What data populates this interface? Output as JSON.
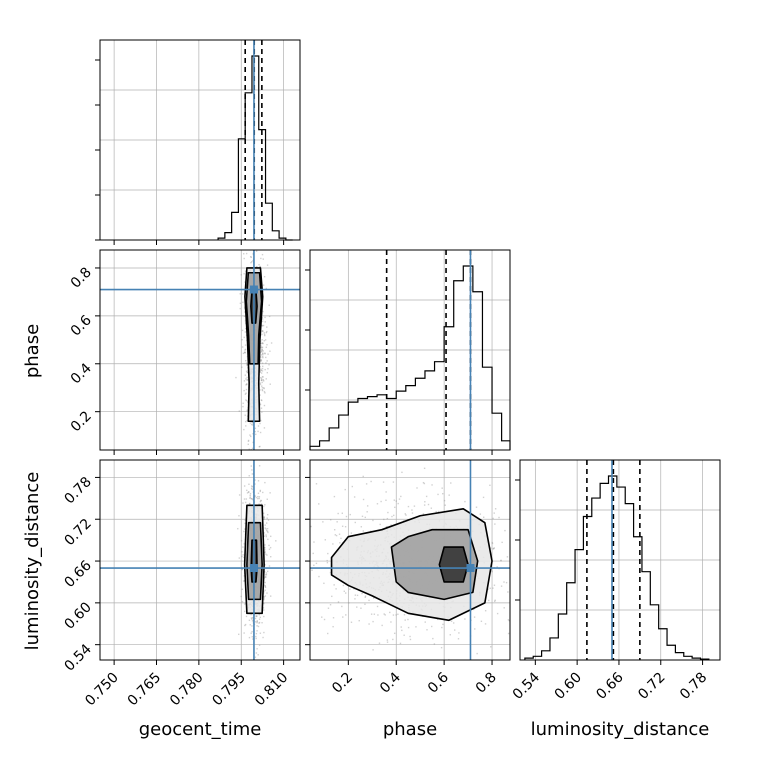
{
  "chart_data": {
    "type": "corner",
    "parameters": [
      "geocent_time",
      "phase",
      "luminosity_distance"
    ],
    "axis_labels": {
      "geocent_time": "geocent_time",
      "phase": "phase",
      "luminosity_distance": "luminosity_distance"
    },
    "ranges": {
      "geocent_time": [
        0.745,
        0.8158
      ],
      "phase": [
        0.04,
        0.875
      ],
      "luminosity_distance": [
        0.518,
        0.805
      ]
    },
    "ticks": {
      "geocent_time": [
        "0.750",
        "0.765",
        "0.780",
        "0.795",
        "0.810"
      ],
      "phase": [
        "0.2",
        "0.4",
        "0.6",
        "0.8"
      ],
      "luminosity_distance": [
        "0.54",
        "0.60",
        "0.66",
        "0.72",
        "0.78"
      ]
    },
    "injection_values": {
      "geocent_time": 0.7995,
      "phase": 0.71,
      "luminosity_distance": 0.65
    },
    "quantile_lines": {
      "geocent_time": [
        0.7964,
        0.7996,
        0.8023
      ],
      "phase": [
        0.36,
        0.608,
        0.71
      ],
      "luminosity_distance": [
        0.614,
        0.652,
        0.69
      ]
    },
    "histograms": {
      "geocent_time": {
        "bin_edges": [
          0.7868,
          0.7892,
          0.7916,
          0.794,
          0.7964,
          0.7988,
          0.8012,
          0.8036,
          0.806,
          0.8084,
          0.8108,
          0.8132
        ],
        "counts": [
          0.01,
          0.04,
          0.15,
          0.55,
          0.8,
          1.0,
          0.6,
          0.2,
          0.05,
          0.01,
          0
        ]
      },
      "phase": {
        "bin_edges": [
          0.04,
          0.08,
          0.12,
          0.16,
          0.2,
          0.24,
          0.28,
          0.32,
          0.36,
          0.4,
          0.44,
          0.48,
          0.52,
          0.56,
          0.6,
          0.64,
          0.68,
          0.72,
          0.76,
          0.8,
          0.84,
          0.875
        ],
        "counts": [
          0.02,
          0.05,
          0.12,
          0.19,
          0.26,
          0.28,
          0.29,
          0.3,
          0.28,
          0.32,
          0.35,
          0.39,
          0.43,
          0.48,
          0.67,
          0.92,
          1.0,
          0.86,
          0.45,
          0.2,
          0.05
        ]
      },
      "luminosity_distance": {
        "bin_edges": [
          0.525,
          0.537,
          0.549,
          0.561,
          0.573,
          0.585,
          0.597,
          0.609,
          0.621,
          0.633,
          0.645,
          0.657,
          0.669,
          0.681,
          0.693,
          0.705,
          0.717,
          0.729,
          0.741,
          0.753,
          0.765,
          0.777,
          0.789
        ],
        "counts": [
          0.01,
          0.02,
          0.05,
          0.12,
          0.25,
          0.42,
          0.6,
          0.78,
          0.88,
          0.96,
          1.0,
          0.94,
          0.85,
          0.67,
          0.48,
          0.3,
          0.17,
          0.08,
          0.04,
          0.02,
          0.01,
          0.005
        ]
      }
    },
    "density_2d": [
      {
        "x": "geocent_time",
        "y": "phase",
        "center": [
          0.7995,
          0.64
        ],
        "contours": [
          {
            "level": 1,
            "points": [
              [
                0.7988,
                0.71
              ],
              [
                0.8002,
                0.71
              ],
              [
                0.8006,
                0.64
              ],
              [
                0.8001,
                0.57
              ],
              [
                0.7988,
                0.57
              ],
              [
                0.7984,
                0.64
              ]
            ]
          },
          {
            "level": 2,
            "points": [
              [
                0.7975,
                0.78
              ],
              [
                0.8015,
                0.78
              ],
              [
                0.8022,
                0.66
              ],
              [
                0.8012,
                0.52
              ],
              [
                0.801,
                0.4
              ],
              [
                0.798,
                0.4
              ],
              [
                0.7976,
                0.52
              ],
              [
                0.7968,
                0.66
              ]
            ]
          },
          {
            "level": 3,
            "points": [
              [
                0.797,
                0.8
              ],
              [
                0.8018,
                0.8
              ],
              [
                0.8026,
                0.68
              ],
              [
                0.8016,
                0.5
              ],
              [
                0.8012,
                0.32
              ],
              [
                0.8015,
                0.16
              ],
              [
                0.7975,
                0.16
              ],
              [
                0.7978,
                0.32
              ],
              [
                0.7972,
                0.5
              ],
              [
                0.7963,
                0.68
              ]
            ]
          }
        ]
      },
      {
        "x": "geocent_time",
        "y": "luminosity_distance",
        "center": [
          0.7997,
          0.655
        ],
        "contours": [
          {
            "level": 1,
            "points": [
              [
                0.7988,
                0.69
              ],
              [
                0.8004,
                0.69
              ],
              [
                0.8006,
                0.65
              ],
              [
                0.8002,
                0.63
              ],
              [
                0.7988,
                0.63
              ],
              [
                0.7985,
                0.65
              ]
            ]
          },
          {
            "level": 2,
            "points": [
              [
                0.7976,
                0.715
              ],
              [
                0.8018,
                0.715
              ],
              [
                0.8024,
                0.655
              ],
              [
                0.8018,
                0.605
              ],
              [
                0.7976,
                0.605
              ],
              [
                0.797,
                0.655
              ]
            ]
          },
          {
            "level": 3,
            "points": [
              [
                0.797,
                0.74
              ],
              [
                0.8024,
                0.74
              ],
              [
                0.8031,
                0.655
              ],
              [
                0.8024,
                0.585
              ],
              [
                0.797,
                0.585
              ],
              [
                0.7962,
                0.655
              ]
            ]
          }
        ]
      },
      {
        "x": "phase",
        "y": "luminosity_distance",
        "center": [
          0.645,
          0.655
        ],
        "contours": [
          {
            "level": 1,
            "points": [
              [
                0.6,
                0.68
              ],
              [
                0.68,
                0.68
              ],
              [
                0.7,
                0.655
              ],
              [
                0.68,
                0.63
              ],
              [
                0.6,
                0.63
              ],
              [
                0.58,
                0.655
              ]
            ]
          },
          {
            "level": 2,
            "points": [
              [
                0.45,
                0.695
              ],
              [
                0.55,
                0.705
              ],
              [
                0.7,
                0.705
              ],
              [
                0.74,
                0.66
              ],
              [
                0.72,
                0.615
              ],
              [
                0.6,
                0.605
              ],
              [
                0.45,
                0.615
              ],
              [
                0.4,
                0.63
              ],
              [
                0.38,
                0.68
              ]
            ]
          },
          {
            "level": 3,
            "points": [
              [
                0.13,
                0.665
              ],
              [
                0.2,
                0.695
              ],
              [
                0.34,
                0.705
              ],
              [
                0.5,
                0.725
              ],
              [
                0.68,
                0.735
              ],
              [
                0.77,
                0.715
              ],
              [
                0.8,
                0.66
              ],
              [
                0.77,
                0.6
              ],
              [
                0.62,
                0.575
              ],
              [
                0.45,
                0.585
              ],
              [
                0.3,
                0.61
              ],
              [
                0.2,
                0.625
              ],
              [
                0.13,
                0.64
              ]
            ]
          }
        ]
      }
    ],
    "colors": {
      "line": "#000000",
      "truth": "#4682b4",
      "grid": "#b0b0b0",
      "density_dark": "#1a1a1a",
      "density_light": "#d8d8d8",
      "points": "#9a9a9a"
    },
    "grid": true
  }
}
